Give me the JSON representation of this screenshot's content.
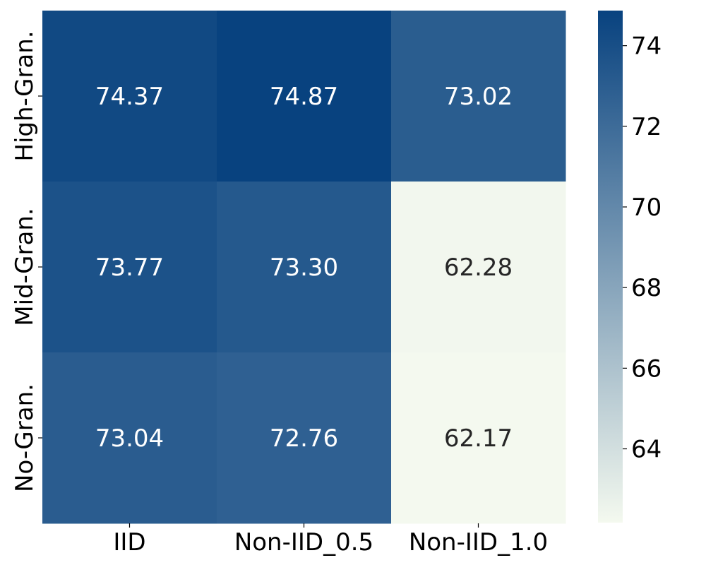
{
  "chart_data": {
    "type": "heatmap",
    "title": "",
    "xlabel": "",
    "ylabel": "",
    "columns": [
      "IID",
      "Non-IID_0.5",
      "Non-IID_1.0"
    ],
    "rows": [
      "High-Gran.",
      "Mid-Gran.",
      "No-Gran."
    ],
    "values": [
      [
        74.37,
        74.87,
        73.02
      ],
      [
        73.77,
        73.3,
        62.28
      ],
      [
        73.04,
        72.76,
        62.17
      ]
    ],
    "labels": [
      [
        "74.37",
        "74.87",
        "73.02"
      ],
      [
        "73.77",
        "73.30",
        "62.28"
      ],
      [
        "73.04",
        "72.76",
        "62.17"
      ]
    ],
    "color_range": [
      62.17,
      74.87
    ],
    "colormap": [
      "#f4f9ef",
      "#08427f"
    ],
    "colorbar": {
      "ticks": [
        "64",
        "66",
        "68",
        "70",
        "72",
        "74"
      ]
    },
    "text_colors": {
      "dark_cell": "#ffffff",
      "light_cell": "#262626"
    },
    "grid": false,
    "legend": "colorbar-right"
  }
}
